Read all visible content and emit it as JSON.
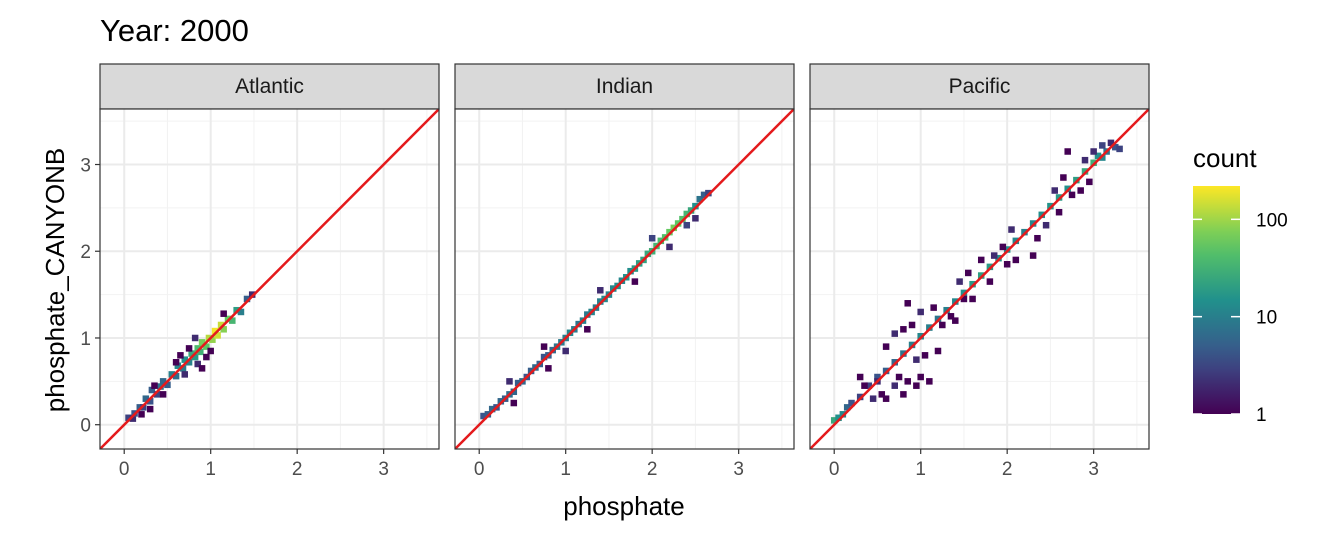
{
  "chart_data": {
    "type": "heatmap",
    "title": "Year: 2000",
    "xlabel": "phosphate",
    "ylabel": "phosphate_CANYONB",
    "xlim": [
      -0.28,
      3.64
    ],
    "ylim": [
      -0.28,
      3.64
    ],
    "x_ticks": [
      "0",
      "1",
      "2",
      "3"
    ],
    "y_ticks": [
      "0",
      "1",
      "2",
      "3"
    ],
    "grid": true,
    "reference_line": {
      "slope": 1,
      "intercept": 0,
      "color": "#e41a1c"
    },
    "legend": {
      "title": "count",
      "position": "right",
      "scale": "log",
      "range": [
        1,
        220
      ],
      "labels": [
        "1",
        "10",
        "100"
      ],
      "colormap": "viridis"
    },
    "panels": [
      {
        "name": "Atlantic",
        "cells": [
          [
            0.05,
            0.08,
            3
          ],
          [
            0.1,
            0.07,
            2
          ],
          [
            0.12,
            0.13,
            4
          ],
          [
            0.18,
            0.2,
            5
          ],
          [
            0.22,
            0.2,
            3
          ],
          [
            0.25,
            0.3,
            6
          ],
          [
            0.3,
            0.27,
            4
          ],
          [
            0.32,
            0.4,
            5
          ],
          [
            0.38,
            0.35,
            3
          ],
          [
            0.42,
            0.44,
            8
          ],
          [
            0.45,
            0.5,
            6
          ],
          [
            0.5,
            0.46,
            5
          ],
          [
            0.55,
            0.58,
            10
          ],
          [
            0.6,
            0.56,
            7
          ],
          [
            0.62,
            0.68,
            12
          ],
          [
            0.68,
            0.65,
            9
          ],
          [
            0.7,
            0.75,
            15
          ],
          [
            0.75,
            0.72,
            11
          ],
          [
            0.78,
            0.82,
            25
          ],
          [
            0.82,
            0.78,
            18
          ],
          [
            0.85,
            0.88,
            40
          ],
          [
            0.88,
            0.84,
            30
          ],
          [
            0.9,
            0.95,
            70
          ],
          [
            0.95,
            0.9,
            55
          ],
          [
            0.98,
            1.0,
            120
          ],
          [
            1.02,
            0.98,
            90
          ],
          [
            1.05,
            1.08,
            200
          ],
          [
            1.08,
            1.03,
            150
          ],
          [
            1.12,
            1.15,
            140
          ],
          [
            1.15,
            1.1,
            80
          ],
          [
            1.2,
            1.22,
            60
          ],
          [
            1.25,
            1.2,
            35
          ],
          [
            1.3,
            1.32,
            20
          ],
          [
            1.35,
            1.3,
            10
          ],
          [
            1.42,
            1.45,
            5
          ],
          [
            1.48,
            1.5,
            2
          ],
          [
            0.2,
            0.12,
            1
          ],
          [
            0.3,
            0.18,
            1
          ],
          [
            0.35,
            0.45,
            1
          ],
          [
            0.45,
            0.35,
            1
          ],
          [
            0.6,
            0.72,
            1
          ],
          [
            0.7,
            0.58,
            2
          ],
          [
            0.65,
            0.8,
            1
          ],
          [
            0.85,
            0.7,
            2
          ],
          [
            0.9,
            0.65,
            1
          ],
          [
            0.95,
            0.78,
            1
          ],
          [
            0.75,
            0.88,
            1
          ],
          [
            1.0,
            0.85,
            1
          ],
          [
            0.82,
            1.0,
            2
          ],
          [
            1.15,
            1.28,
            1
          ]
        ]
      },
      {
        "name": "Indian",
        "cells": [
          [
            0.05,
            0.1,
            4
          ],
          [
            0.1,
            0.12,
            5
          ],
          [
            0.15,
            0.18,
            6
          ],
          [
            0.2,
            0.2,
            4
          ],
          [
            0.25,
            0.27,
            6
          ],
          [
            0.3,
            0.3,
            5
          ],
          [
            0.35,
            0.35,
            7
          ],
          [
            0.4,
            0.38,
            6
          ],
          [
            0.45,
            0.48,
            5
          ],
          [
            0.5,
            0.5,
            6
          ],
          [
            0.55,
            0.55,
            4
          ],
          [
            0.6,
            0.62,
            5
          ],
          [
            0.65,
            0.66,
            6
          ],
          [
            0.7,
            0.7,
            5
          ],
          [
            0.75,
            0.78,
            4
          ],
          [
            0.8,
            0.8,
            5
          ],
          [
            0.85,
            0.86,
            6
          ],
          [
            0.9,
            0.9,
            8
          ],
          [
            0.95,
            0.95,
            9
          ],
          [
            1.0,
            1.0,
            10
          ],
          [
            1.05,
            1.06,
            12
          ],
          [
            1.1,
            1.1,
            9
          ],
          [
            1.15,
            1.16,
            8
          ],
          [
            1.2,
            1.2,
            10
          ],
          [
            1.25,
            1.27,
            9
          ],
          [
            1.3,
            1.3,
            11
          ],
          [
            1.35,
            1.35,
            9
          ],
          [
            1.4,
            1.42,
            10
          ],
          [
            1.45,
            1.45,
            12
          ],
          [
            1.5,
            1.5,
            11
          ],
          [
            1.55,
            1.57,
            12
          ],
          [
            1.6,
            1.6,
            14
          ],
          [
            1.65,
            1.66,
            12
          ],
          [
            1.7,
            1.7,
            15
          ],
          [
            1.75,
            1.77,
            14
          ],
          [
            1.8,
            1.8,
            18
          ],
          [
            1.85,
            1.86,
            20
          ],
          [
            1.9,
            1.9,
            22
          ],
          [
            1.95,
            1.97,
            25
          ],
          [
            2.0,
            2.0,
            30
          ],
          [
            2.05,
            2.06,
            35
          ],
          [
            2.1,
            2.12,
            40
          ],
          [
            2.15,
            2.16,
            45
          ],
          [
            2.2,
            2.22,
            60
          ],
          [
            2.25,
            2.27,
            70
          ],
          [
            2.3,
            2.32,
            55
          ],
          [
            2.35,
            2.37,
            45
          ],
          [
            2.4,
            2.43,
            35
          ],
          [
            2.45,
            2.47,
            25
          ],
          [
            2.5,
            2.52,
            15
          ],
          [
            2.55,
            2.6,
            8
          ],
          [
            2.6,
            2.65,
            5
          ],
          [
            2.65,
            2.67,
            3
          ],
          [
            0.4,
            0.25,
            1
          ],
          [
            0.35,
            0.5,
            2
          ],
          [
            0.8,
            0.65,
            1
          ],
          [
            0.75,
            0.9,
            1
          ],
          [
            1.0,
            0.85,
            2
          ],
          [
            1.25,
            1.1,
            1
          ],
          [
            1.4,
            1.55,
            2
          ],
          [
            1.8,
            1.65,
            1
          ],
          [
            2.0,
            2.15,
            3
          ],
          [
            2.2,
            2.05,
            2
          ],
          [
            2.4,
            2.3,
            3
          ],
          [
            2.5,
            2.38,
            2
          ]
        ]
      },
      {
        "name": "Pacific",
        "cells": [
          [
            0.0,
            0.05,
            25
          ],
          [
            0.05,
            0.08,
            15
          ],
          [
            0.1,
            0.12,
            12
          ],
          [
            0.15,
            0.2,
            6
          ],
          [
            0.2,
            0.25,
            4
          ],
          [
            0.3,
            0.32,
            3
          ],
          [
            0.4,
            0.45,
            3
          ],
          [
            0.5,
            0.55,
            4
          ],
          [
            0.6,
            0.62,
            5
          ],
          [
            0.7,
            0.72,
            6
          ],
          [
            0.8,
            0.82,
            8
          ],
          [
            0.9,
            0.92,
            10
          ],
          [
            1.0,
            1.02,
            12
          ],
          [
            1.1,
            1.12,
            10
          ],
          [
            1.2,
            1.22,
            8
          ],
          [
            1.3,
            1.32,
            10
          ],
          [
            1.4,
            1.42,
            12
          ],
          [
            1.5,
            1.52,
            15
          ],
          [
            1.6,
            1.62,
            18
          ],
          [
            1.7,
            1.72,
            20
          ],
          [
            1.8,
            1.82,
            18
          ],
          [
            1.9,
            1.92,
            16
          ],
          [
            2.0,
            2.02,
            14
          ],
          [
            2.1,
            2.12,
            12
          ],
          [
            2.2,
            2.22,
            10
          ],
          [
            2.3,
            2.32,
            12
          ],
          [
            2.4,
            2.42,
            14
          ],
          [
            2.5,
            2.52,
            16
          ],
          [
            2.6,
            2.62,
            18
          ],
          [
            2.7,
            2.72,
            15
          ],
          [
            2.8,
            2.82,
            20
          ],
          [
            2.9,
            2.92,
            25
          ],
          [
            3.0,
            3.02,
            30
          ],
          [
            3.05,
            3.1,
            15
          ],
          [
            3.1,
            3.08,
            12
          ],
          [
            3.15,
            3.15,
            8
          ],
          [
            3.25,
            3.2,
            4
          ],
          [
            3.3,
            3.18,
            3
          ],
          [
            3.2,
            3.25,
            2
          ],
          [
            3.1,
            3.22,
            3
          ],
          [
            0.3,
            0.55,
            1
          ],
          [
            0.35,
            0.45,
            1
          ],
          [
            0.45,
            0.3,
            2
          ],
          [
            0.5,
            0.5,
            2
          ],
          [
            0.55,
            0.35,
            1
          ],
          [
            0.6,
            0.3,
            1
          ],
          [
            0.7,
            0.45,
            2
          ],
          [
            0.75,
            0.55,
            1
          ],
          [
            0.8,
            0.35,
            1
          ],
          [
            0.85,
            0.5,
            1
          ],
          [
            0.95,
            0.45,
            1
          ],
          [
            1.0,
            0.55,
            1
          ],
          [
            1.1,
            0.5,
            1
          ],
          [
            0.95,
            0.75,
            2
          ],
          [
            1.05,
            0.8,
            1
          ],
          [
            1.15,
            1.35,
            1
          ],
          [
            1.2,
            0.85,
            1
          ],
          [
            0.6,
            0.9,
            1
          ],
          [
            0.7,
            1.05,
            2
          ],
          [
            0.8,
            1.1,
            1
          ],
          [
            0.9,
            1.15,
            1
          ],
          [
            1.0,
            1.3,
            2
          ],
          [
            0.85,
            1.4,
            1
          ],
          [
            1.25,
            1.15,
            1
          ],
          [
            1.35,
            1.25,
            1
          ],
          [
            1.4,
            1.2,
            1
          ],
          [
            1.5,
            1.45,
            1
          ],
          [
            1.45,
            1.65,
            2
          ],
          [
            1.55,
            1.75,
            1
          ],
          [
            1.6,
            1.45,
            1
          ],
          [
            1.7,
            1.9,
            1
          ],
          [
            1.8,
            1.65,
            1
          ],
          [
            1.85,
            1.95,
            2
          ],
          [
            1.95,
            2.05,
            1
          ],
          [
            2.0,
            1.85,
            1
          ],
          [
            2.05,
            2.25,
            2
          ],
          [
            2.1,
            1.9,
            1
          ],
          [
            2.3,
            1.95,
            1
          ],
          [
            2.35,
            2.15,
            1
          ],
          [
            2.45,
            2.3,
            2
          ],
          [
            2.55,
            2.7,
            2
          ],
          [
            2.6,
            2.45,
            1
          ],
          [
            2.65,
            2.85,
            1
          ],
          [
            2.75,
            2.65,
            1
          ],
          [
            2.85,
            2.7,
            1
          ],
          [
            2.9,
            3.05,
            2
          ],
          [
            2.7,
            3.15,
            1
          ],
          [
            2.95,
            2.8,
            1
          ],
          [
            3.0,
            3.15,
            2
          ]
        ]
      }
    ]
  }
}
